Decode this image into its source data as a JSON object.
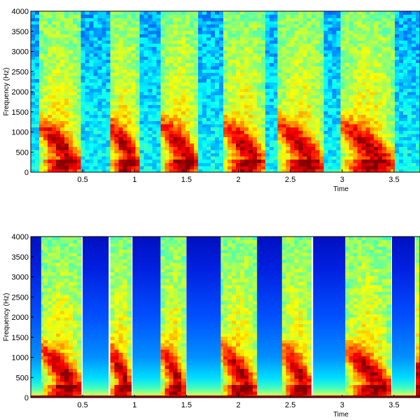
{
  "chart_data": [
    {
      "type": "heatmap",
      "title": "",
      "xlabel": "Time",
      "ylabel": "Frequency (Hz)",
      "xlim": [
        0,
        3.75
      ],
      "ylim": [
        0,
        4000
      ],
      "x_ticks": [
        0.5,
        1,
        1.5,
        2,
        2.5,
        3,
        3.5
      ],
      "x_tick_labels": [
        "0.5",
        "1",
        "1.5",
        "2",
        "2.5",
        "3",
        "3.5"
      ],
      "y_ticks": [
        0,
        500,
        1000,
        1500,
        2000,
        2500,
        3000,
        3500,
        4000
      ],
      "y_tick_labels": [
        "0",
        "500",
        "1000",
        "1500",
        "2000",
        "2500",
        "3000",
        "3500",
        "4000"
      ],
      "colormap": "jet",
      "speech_segments": [
        {
          "start": 0.08,
          "end": 0.48
        },
        {
          "start": 0.75,
          "end": 1.05
        },
        {
          "start": 1.25,
          "end": 1.62
        },
        {
          "start": 1.85,
          "end": 2.25
        },
        {
          "start": 2.38,
          "end": 2.82
        },
        {
          "start": 2.98,
          "end": 3.5
        }
      ],
      "gaps_filled": false
    },
    {
      "type": "heatmap",
      "title": "",
      "xlabel": "Time",
      "ylabel": "Frequency (Hz)",
      "xlim": [
        0,
        3.75
      ],
      "ylim": [
        0,
        4000
      ],
      "x_ticks": [
        0.5,
        1,
        1.5,
        2,
        2.5,
        3,
        3.5
      ],
      "x_tick_labels": [
        "0.5",
        "1",
        "1.5",
        "2",
        "2.5",
        "3",
        "3.5"
      ],
      "y_ticks": [
        0,
        500,
        1000,
        1500,
        2000,
        2500,
        3000,
        3500,
        4000
      ],
      "y_tick_labels": [
        "0",
        "500",
        "1000",
        "1500",
        "2000",
        "2500",
        "3000",
        "3500",
        "4000"
      ],
      "colormap": "jet",
      "speech_segments": [
        {
          "start": 0.1,
          "end": 0.5
        },
        {
          "start": 0.75,
          "end": 0.98
        },
        {
          "start": 1.25,
          "end": 1.5
        },
        {
          "start": 1.83,
          "end": 2.18
        },
        {
          "start": 2.42,
          "end": 2.72
        },
        {
          "start": 3.03,
          "end": 3.48
        },
        {
          "start": 3.7,
          "end": 3.75
        }
      ],
      "gaps_filled": true
    }
  ]
}
